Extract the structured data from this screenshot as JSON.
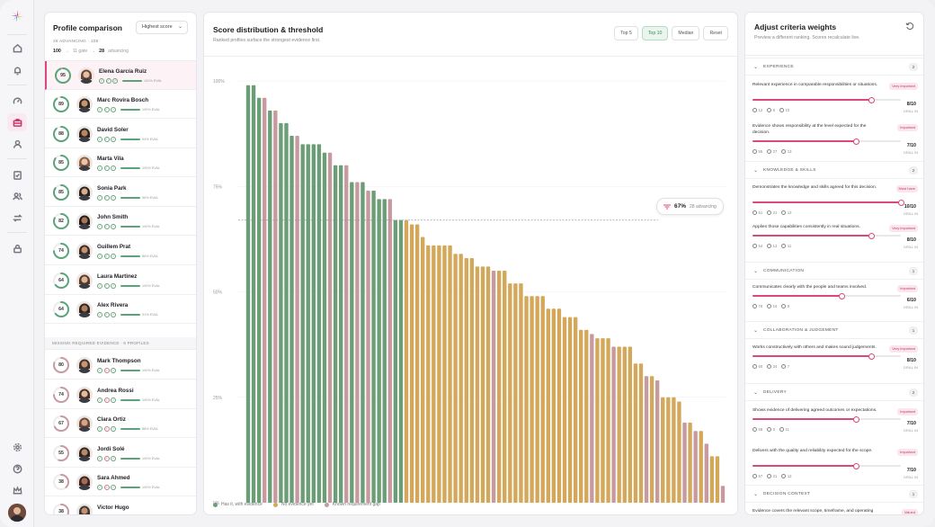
{
  "left": {
    "title": "Profile comparison",
    "sort_label": "Highest score",
    "subtitle": "28 ADVANCING · 105",
    "funnel": {
      "total": "100",
      "gate_label": "11 gate",
      "advancing": "28",
      "advancing_label": "advancing"
    },
    "group_label": "MISSING REQUIRED EVIDENCE · 6 PROFILES",
    "profiles": [
      {
        "name": "Elena García Ruiz",
        "score": "95",
        "evidence": "100% EVAL",
        "pct": 0.95,
        "missing": false
      },
      {
        "name": "Marc Rovira Bosch",
        "score": "89",
        "evidence": "100% EVAL",
        "pct": 0.89,
        "missing": false
      },
      {
        "name": "David Soler",
        "score": "88",
        "evidence": "94% EVAL",
        "pct": 0.88,
        "missing": false
      },
      {
        "name": "Marta Vila",
        "score": "85",
        "evidence": "100% EVAL",
        "pct": 0.85,
        "missing": false
      },
      {
        "name": "Sonia Park",
        "score": "85",
        "evidence": "96% EVAL",
        "pct": 0.85,
        "missing": false
      },
      {
        "name": "John Smith",
        "score": "82",
        "evidence": "100% EVAL",
        "pct": 0.82,
        "missing": false
      },
      {
        "name": "Guillem Prat",
        "score": "74",
        "evidence": "86% EVAL",
        "pct": 0.74,
        "missing": false
      },
      {
        "name": "Laura Martinez",
        "score": "64",
        "evidence": "100% EVAL",
        "pct": 0.64,
        "missing": false
      },
      {
        "name": "Alex Rivera",
        "score": "64",
        "evidence": "91% EVAL",
        "pct": 0.64,
        "missing": false
      },
      {
        "name": "Mark Thompson",
        "score": "80",
        "evidence": "100% EVAL",
        "pct": 0.8,
        "missing": true
      },
      {
        "name": "Andrea Rossi",
        "score": "74",
        "evidence": "100% EVAL",
        "pct": 0.74,
        "missing": true
      },
      {
        "name": "Clara Ortiz",
        "score": "67",
        "evidence": "88% EVAL",
        "pct": 0.67,
        "missing": true
      },
      {
        "name": "Jordi Solé",
        "score": "55",
        "evidence": "100% EVAL",
        "pct": 0.55,
        "missing": true
      },
      {
        "name": "Sara Ahmed",
        "score": "38",
        "evidence": "100% EVAL",
        "pct": 0.38,
        "missing": true
      },
      {
        "name": "Victor Hugo",
        "score": "38",
        "evidence": "100% EVAL",
        "pct": 0.38,
        "missing": true
      }
    ]
  },
  "mid": {
    "title": "Score distribution & threshold",
    "subtitle": "Ranked profiles surface the strongest evidence first.",
    "segments": [
      "Top 5",
      "Top 10",
      "Median",
      "Reset"
    ],
    "active_segment": "Top 10",
    "threshold_pct": "67%",
    "threshold_label": "28 advancing",
    "legend": [
      "Has it, with evidence",
      "No evidence yet",
      "Known requirement gap"
    ]
  },
  "chart_data": {
    "type": "bar",
    "yticks": [
      "100%",
      "75%",
      "50%",
      "25%",
      "0%"
    ],
    "ylim": [
      0,
      100
    ],
    "threshold": 67,
    "series_colors": {
      "evidence": "#6b9e76",
      "no_evidence": "#d4a85a",
      "gap": "#c79aa0"
    },
    "values": [
      99,
      99,
      96,
      96,
      93,
      93,
      90,
      90,
      87,
      87,
      85,
      85,
      85,
      85,
      83,
      83,
      80,
      80,
      80,
      76,
      76,
      76,
      74,
      74,
      72,
      72,
      72,
      67,
      67,
      67,
      66,
      66,
      63,
      61,
      61,
      61,
      61,
      61,
      59,
      59,
      58,
      58,
      56,
      56,
      56,
      55,
      55,
      55,
      52,
      52,
      52,
      49,
      49,
      49,
      49,
      46,
      46,
      46,
      44,
      44,
      44,
      41,
      41,
      40,
      39,
      39,
      39,
      37,
      37,
      37,
      37,
      33,
      33,
      30,
      30,
      29,
      25,
      25,
      25,
      24,
      19,
      19,
      17,
      17,
      14,
      11,
      11,
      4
    ],
    "classes": [
      "e",
      "e",
      "e",
      "g",
      "e",
      "g",
      "e",
      "e",
      "e",
      "g",
      "e",
      "e",
      "e",
      "e",
      "e",
      "g",
      "e",
      "e",
      "g",
      "e",
      "g",
      "e",
      "g",
      "e",
      "e",
      "e",
      "g",
      "e",
      "e",
      "n",
      "n",
      "n",
      "n",
      "n",
      "n",
      "n",
      "n",
      "n",
      "n",
      "n",
      "n",
      "n",
      "n",
      "n",
      "n",
      "g",
      "n",
      "n",
      "n",
      "n",
      "n",
      "n",
      "n",
      "n",
      "n",
      "n",
      "n",
      "n",
      "n",
      "n",
      "n",
      "n",
      "n",
      "g",
      "n",
      "n",
      "n",
      "g",
      "n",
      "n",
      "n",
      "n",
      "n",
      "g",
      "n",
      "g",
      "n",
      "n",
      "n",
      "n",
      "g",
      "n",
      "g",
      "n",
      "g",
      "n",
      "n",
      "g"
    ]
  },
  "right": {
    "title": "Adjust criteria weights",
    "subtitle": "Preview a different ranking. Scores recalculate live.",
    "sections": [
      {
        "title": "EXPERIENCE",
        "count": "2",
        "criteria": [
          {
            "text": "Relevant experience in comparable responsibilities or situations.",
            "tag": "Very important",
            "score": "8/10",
            "value": 0.8,
            "stats": [
              "12",
              "8",
              "10"
            ],
            "drill": "DRILL IN"
          },
          {
            "text": "Evidence shows responsibility at the level expected for the decision.",
            "tag": "Important",
            "score": "7/10",
            "value": 0.7,
            "stats": [
              "55",
              "27",
              "13"
            ],
            "drill": "DRILL IN"
          }
        ]
      },
      {
        "title": "KNOWLEDGE & SKILLS",
        "count": "2",
        "criteria": [
          {
            "text": "Demonstrates the knowledge and skills agreed for this decision.",
            "tag": "Must have",
            "score": "10/10",
            "value": 1.0,
            "stats": [
              "61",
              "21",
              "12"
            ],
            "drill": "DRILL IN"
          },
          {
            "text": "Applies those capabilities consistently in real situations.",
            "tag": "Very important",
            "score": "8/10",
            "value": 0.8,
            "stats": [
              "54",
              "13",
              "11"
            ],
            "drill": "DRILL IN"
          }
        ]
      },
      {
        "title": "COMMUNICATION",
        "count": "1",
        "criteria": [
          {
            "text": "Communicates clearly with the people and teams involved.",
            "tag": "Important",
            "score": "6/10",
            "value": 0.6,
            "stats": [
              "76",
              "16",
              "8"
            ],
            "drill": "DRILL IN"
          }
        ]
      },
      {
        "title": "COLLABORATION & JUDGEMENT",
        "count": "1",
        "criteria": [
          {
            "text": "Works constructively with others and makes sound judgements.",
            "tag": "Very important",
            "score": "8/10",
            "value": 0.8,
            "stats": [
              "60",
              "34",
              "7"
            ],
            "drill": "DRILL IN"
          }
        ]
      },
      {
        "title": "DELIVERY",
        "count": "2",
        "criteria": [
          {
            "text": "Shows evidence of delivering agreed outcomes or expectations.",
            "tag": "Important",
            "score": "7/10",
            "value": 0.7,
            "stats": [
              "58",
              "0",
              "11"
            ],
            "drill": "DRILL IN"
          },
          {
            "text": "Delivers with the quality and reliability expected for the scope.",
            "tag": "Important",
            "score": "7/10",
            "value": 0.7,
            "stats": [
              "67",
              "21",
              "12"
            ],
            "drill": "DRILL IN"
          }
        ]
      },
      {
        "title": "DECISION CONTEXT",
        "count": "1",
        "criteria": [
          {
            "text": "Evidence covers the relevant scope, timeframe, and operating context.",
            "tag": "Valued",
            "score": "",
            "value": 0.5,
            "stats": [],
            "drill": ""
          }
        ]
      }
    ]
  }
}
